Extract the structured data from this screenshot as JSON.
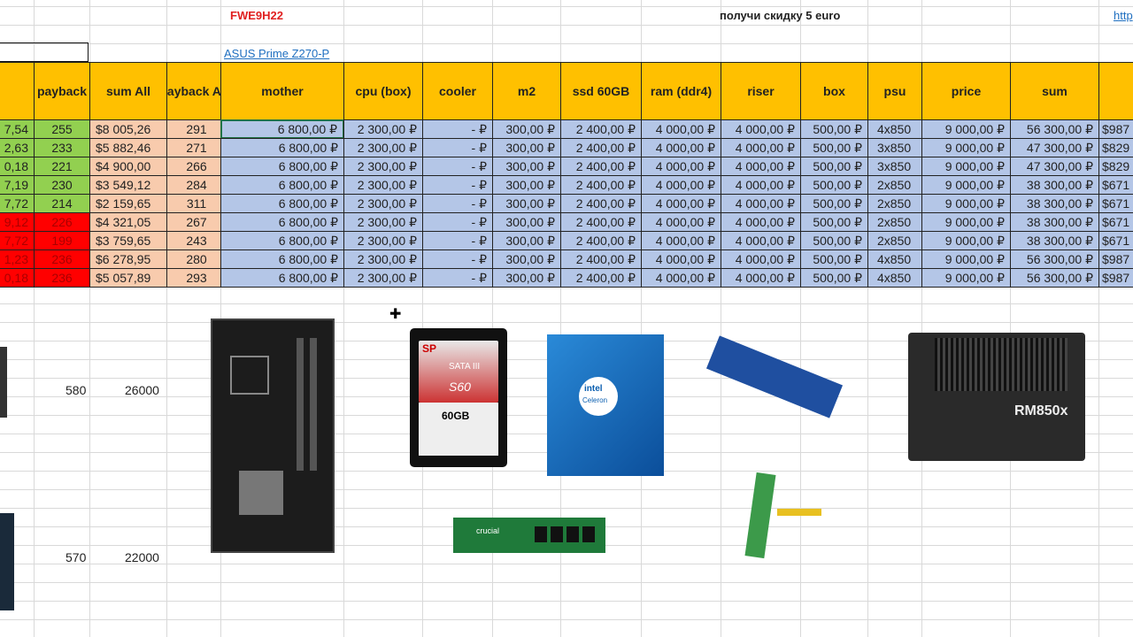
{
  "top": {
    "promo_code": "FWE9H22",
    "promo_text": "получи скидку 5 euro",
    "link_partial": "http",
    "mother_link": "ASUS Prime Z270-P"
  },
  "colors": {
    "header": "#ffc000",
    "good": "#92d050",
    "bad": "#ff0000",
    "sum_all": "#f8cbad",
    "parts": "#b4c6e7"
  },
  "headers": [
    "",
    "payback",
    "sum All",
    "payback All",
    "mother",
    "cpu (box)",
    "cooler",
    "m2",
    "ssd 60GB",
    "ram (ddr4)",
    "riser",
    "box",
    "psu",
    "price",
    "sum",
    "$"
  ],
  "rows": [
    {
      "status": "good",
      "cells": [
        "7,54",
        "255",
        "$8 005,26",
        "291",
        "6 800,00 ₽",
        "2 300,00 ₽",
        "-    ₽",
        "300,00 ₽",
        "2 400,00 ₽",
        "4 000,00 ₽",
        "4 000,00 ₽",
        "500,00 ₽",
        "4x850",
        "9 000,00 ₽",
        "56 300,00 ₽",
        "$987"
      ]
    },
    {
      "status": "good",
      "cells": [
        "2,63",
        "233",
        "$5 882,46",
        "271",
        "6 800,00 ₽",
        "2 300,00 ₽",
        "-    ₽",
        "300,00 ₽",
        "2 400,00 ₽",
        "4 000,00 ₽",
        "4 000,00 ₽",
        "500,00 ₽",
        "3x850",
        "9 000,00 ₽",
        "47 300,00 ₽",
        "$829"
      ]
    },
    {
      "status": "good",
      "cells": [
        "0,18",
        "221",
        "$4 900,00",
        "266",
        "6 800,00 ₽",
        "2 300,00 ₽",
        "-    ₽",
        "300,00 ₽",
        "2 400,00 ₽",
        "4 000,00 ₽",
        "4 000,00 ₽",
        "500,00 ₽",
        "3x850",
        "9 000,00 ₽",
        "47 300,00 ₽",
        "$829"
      ]
    },
    {
      "status": "good",
      "cells": [
        "7,19",
        "230",
        "$3 549,12",
        "284",
        "6 800,00 ₽",
        "2 300,00 ₽",
        "-    ₽",
        "300,00 ₽",
        "2 400,00 ₽",
        "4 000,00 ₽",
        "4 000,00 ₽",
        "500,00 ₽",
        "2x850",
        "9 000,00 ₽",
        "38 300,00 ₽",
        "$671"
      ]
    },
    {
      "status": "good",
      "cells": [
        "7,72",
        "214",
        "$2 159,65",
        "311",
        "6 800,00 ₽",
        "2 300,00 ₽",
        "-    ₽",
        "300,00 ₽",
        "2 400,00 ₽",
        "4 000,00 ₽",
        "4 000,00 ₽",
        "500,00 ₽",
        "2x850",
        "9 000,00 ₽",
        "38 300,00 ₽",
        "$671"
      ]
    },
    {
      "status": "bad",
      "cells": [
        "9,12",
        "226",
        "$4 321,05",
        "267",
        "6 800,00 ₽",
        "2 300,00 ₽",
        "-    ₽",
        "300,00 ₽",
        "2 400,00 ₽",
        "4 000,00 ₽",
        "4 000,00 ₽",
        "500,00 ₽",
        "2x850",
        "9 000,00 ₽",
        "38 300,00 ₽",
        "$671"
      ]
    },
    {
      "status": "bad",
      "cells": [
        "7,72",
        "199",
        "$3 759,65",
        "243",
        "6 800,00 ₽",
        "2 300,00 ₽",
        "-    ₽",
        "300,00 ₽",
        "2 400,00 ₽",
        "4 000,00 ₽",
        "4 000,00 ₽",
        "500,00 ₽",
        "2x850",
        "9 000,00 ₽",
        "38 300,00 ₽",
        "$671"
      ]
    },
    {
      "status": "bad",
      "cells": [
        "1,23",
        "236",
        "$6 278,95",
        "280",
        "6 800,00 ₽",
        "2 300,00 ₽",
        "-    ₽",
        "300,00 ₽",
        "2 400,00 ₽",
        "4 000,00 ₽",
        "4 000,00 ₽",
        "500,00 ₽",
        "4x850",
        "9 000,00 ₽",
        "56 300,00 ₽",
        "$987"
      ]
    },
    {
      "status": "bad",
      "cells": [
        "0,18",
        "236",
        "$5 057,89",
        "293",
        "6 800,00 ₽",
        "2 300,00 ₽",
        "-    ₽",
        "300,00 ₽",
        "2 400,00 ₽",
        "4 000,00 ₽",
        "4 000,00 ₽",
        "500,00 ₽",
        "4x850",
        "9 000,00 ₽",
        "56 300,00 ₽",
        "$987"
      ]
    }
  ],
  "lower": [
    {
      "a": "580",
      "b": "26000"
    },
    {
      "a": "570",
      "b": "22000"
    }
  ],
  "images": {
    "ssd_brand": "SP",
    "ssd_model": "S60",
    "ssd_label": "SATA III",
    "ssd_capacity": "60GB",
    "cpu_brand": "intel",
    "cpu_model": "Celeron",
    "psu_model": "RM850x",
    "ram_brand": "crucial"
  }
}
